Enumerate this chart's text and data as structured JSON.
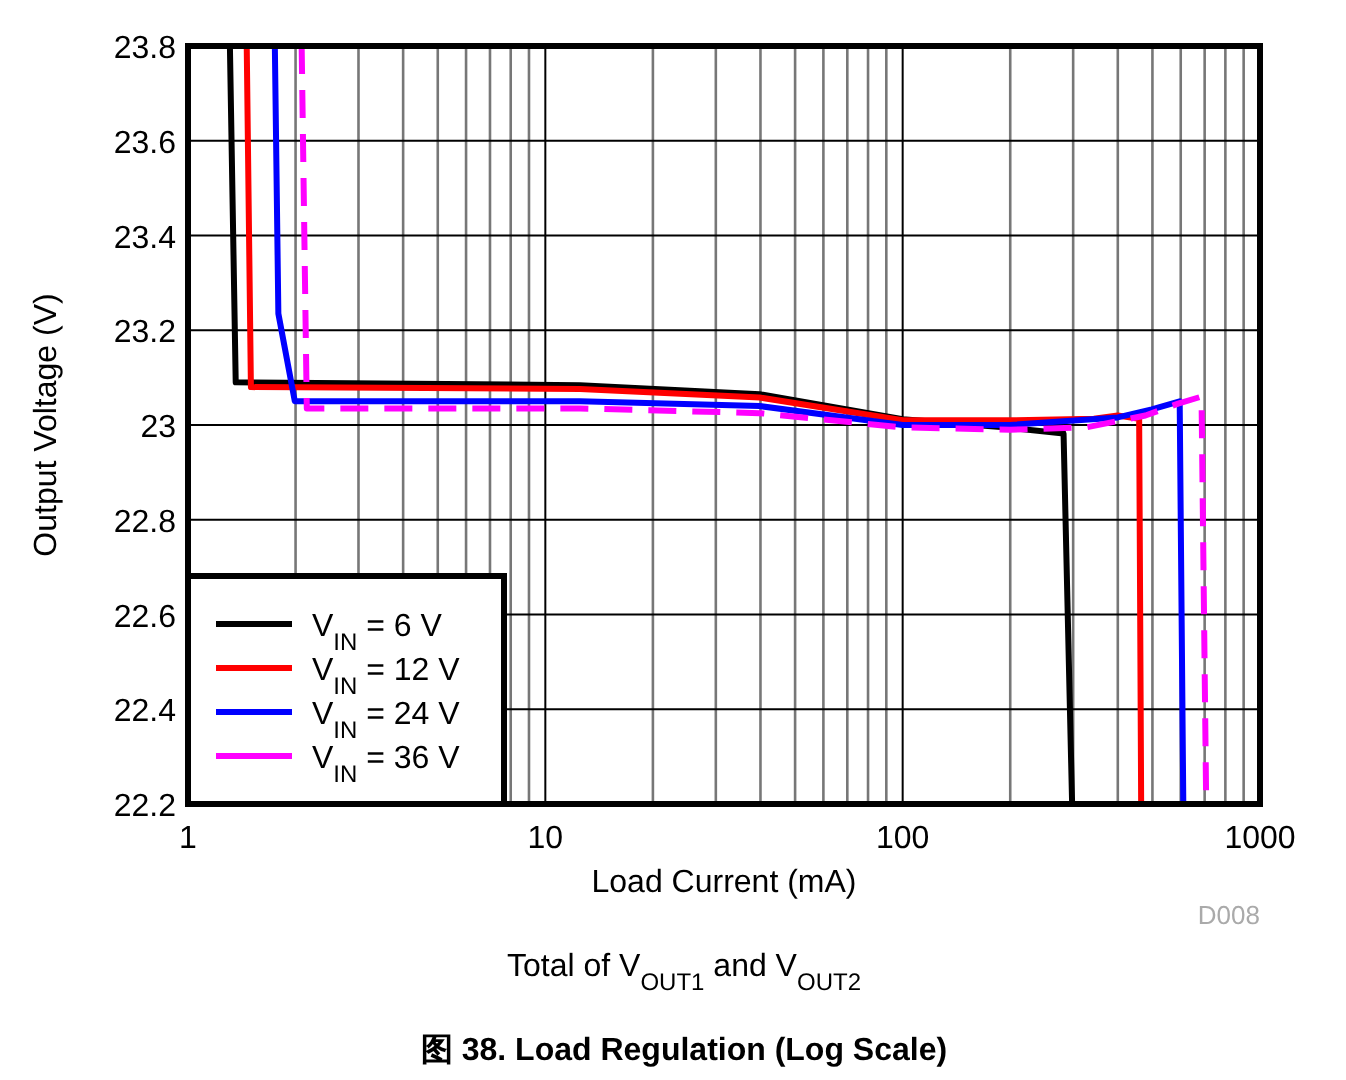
{
  "chart_data": {
    "type": "line",
    "xlabel": "Load Current (mA)",
    "ylabel": "Output Voltage (V)",
    "log": "x",
    "xlim": [
      1,
      1000
    ],
    "xticks": [
      1,
      10,
      100,
      1000
    ],
    "ylim": [
      22.2,
      23.8
    ],
    "yticks": [
      22.2,
      22.4,
      22.6,
      22.8,
      23,
      23.2,
      23.4,
      23.6,
      23.8
    ],
    "grid": true,
    "legend": "bottom left",
    "marker": "none",
    "series": [
      {
        "name": "V$_{IN}$ = 6 V",
        "color": "#000000",
        "line_style": "solid",
        "x": [
          1.31,
          1.36,
          12.5,
          39.8,
          100,
          200,
          282,
          298
        ],
        "values": [
          23.8,
          23.09,
          23.084,
          23.065,
          23.012,
          22.994,
          22.982,
          22.2
        ]
      },
      {
        "name": "V$_{IN}$ = 12 V",
        "color": "#ff0000",
        "line_style": "solid",
        "x": [
          1.46,
          1.5,
          12.5,
          39.8,
          100,
          200,
          343,
          400,
          459,
          465
        ],
        "values": [
          23.8,
          23.08,
          23.076,
          23.058,
          23.01,
          23.01,
          23.013,
          23.02,
          23.013,
          22.2
        ]
      },
      {
        "name": "V$_{IN}$ = 24 V",
        "color": "#0000ff",
        "line_style": "solid",
        "x": [
          1.75,
          1.79,
          1.99,
          12.5,
          39.8,
          100,
          200,
          400,
          498,
          596,
          610
        ],
        "values": [
          23.8,
          23.235,
          23.05,
          23.05,
          23.04,
          23.0,
          23.0,
          23.016,
          23.033,
          23.05,
          22.2
        ]
      },
      {
        "name": "V$_{IN}$ = 36 V",
        "color": "#ff00ff",
        "line_style": "dashed",
        "x": [
          2.08,
          2.15,
          12.5,
          39.8,
          100,
          200,
          326,
          478,
          590,
          686,
          707
        ],
        "values": [
          23.8,
          23.035,
          23.035,
          23.025,
          22.995,
          22.99,
          22.995,
          23.02,
          23.045,
          23.06,
          22.2
        ]
      }
    ],
    "annotations": [
      "D008",
      "Total of V$_{OUT1}$ and V$_{OUT2}$",
      "图 38. Load Regulation (Log Scale)"
    ]
  }
}
